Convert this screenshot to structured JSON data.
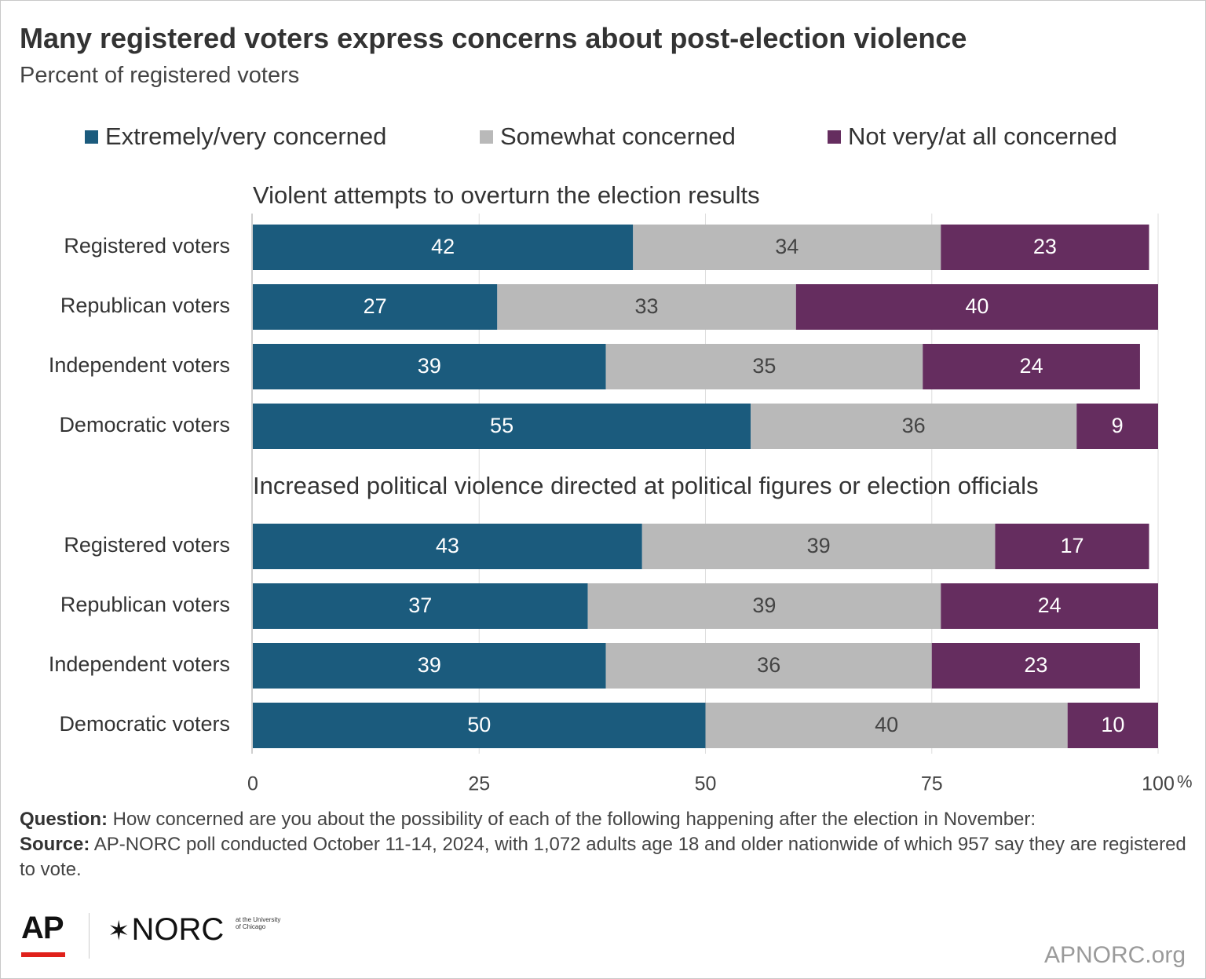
{
  "title": "Many registered voters express concerns about post-election violence",
  "subtitle": "Percent of registered voters",
  "colors": {
    "extremely": "#1b5b7d",
    "somewhat": "#b9b9b9",
    "not": "#652d5f",
    "grid": "#dddddd"
  },
  "chart_data": {
    "type": "bar",
    "orientation": "horizontal",
    "stacked": true,
    "title": "Many registered voters express concerns about post-election violence",
    "subtitle": "Percent of registered voters",
    "xlim": [
      0,
      100
    ],
    "xticks": [
      {
        "value": 0,
        "label": "0"
      },
      {
        "value": 25,
        "label": "25"
      },
      {
        "value": 50,
        "label": "50"
      },
      {
        "value": 75,
        "label": "75"
      },
      {
        "value": 100,
        "label": "100"
      }
    ],
    "x_unit": "%",
    "grid": true,
    "legend_position": "top",
    "series_names": [
      "Extremely/very concerned",
      "Somewhat concerned",
      "Not very/at all concerned"
    ],
    "panels": [
      {
        "title": "Violent attempts to overturn the election results",
        "categories": [
          "Registered voters",
          "Republican voters",
          "Independent voters",
          "Democratic voters"
        ],
        "series": [
          {
            "name": "Extremely/very concerned",
            "values": [
              42,
              27,
              39,
              55
            ]
          },
          {
            "name": "Somewhat concerned",
            "values": [
              34,
              33,
              35,
              36
            ]
          },
          {
            "name": "Not very/at all concerned",
            "values": [
              23,
              40,
              24,
              9
            ]
          }
        ]
      },
      {
        "title": "Increased political violence directed at political figures or election officials",
        "categories": [
          "Registered voters",
          "Republican voters",
          "Independent voters",
          "Democratic voters"
        ],
        "series": [
          {
            "name": "Extremely/very concerned",
            "values": [
              43,
              37,
              39,
              50
            ]
          },
          {
            "name": "Somewhat concerned",
            "values": [
              39,
              39,
              36,
              40
            ]
          },
          {
            "name": "Not very/at all concerned",
            "values": [
              17,
              24,
              23,
              10
            ]
          }
        ]
      }
    ]
  },
  "footnote": {
    "question_label": "Question:",
    "question_text": "How concerned are you about the possibility of each of the following happening after the election in November:",
    "source_label": "Source:",
    "source_text": "AP-NORC poll conducted October 11-14, 2024, with 1,072 adults age 18 and older nationwide of which 957 say they are registered to vote."
  },
  "logos": {
    "ap": "AP",
    "norc": "NORC",
    "norc_small": "at the University of Chicago"
  },
  "site": "APNORC.org"
}
